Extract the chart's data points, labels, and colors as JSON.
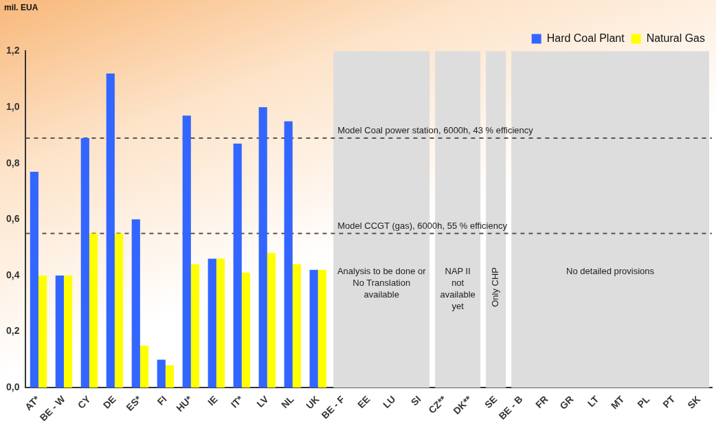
{
  "chart_data": {
    "type": "bar",
    "ylabel": "mil. EUA",
    "categories": [
      "AT*",
      "BE - W",
      "CY",
      "DE",
      "ES*",
      "FI",
      "HU*",
      "IE",
      "IT*",
      "LV",
      "NL",
      "UK",
      "BE - F",
      "EE",
      "LU",
      "SI",
      "CZ**",
      "DK**",
      "SE",
      "BE - B",
      "FR",
      "GR",
      "LT",
      "MT",
      "PL",
      "PT",
      "SK"
    ],
    "series": [
      {
        "name": "Hard Coal Plant",
        "color": "#3366ff",
        "values": [
          0.77,
          0.4,
          0.89,
          1.12,
          0.6,
          0.1,
          0.97,
          0.46,
          0.87,
          1.0,
          0.95,
          0.42,
          null,
          null,
          null,
          null,
          null,
          null,
          null,
          null,
          null,
          null,
          null,
          null,
          null,
          null,
          null
        ]
      },
      {
        "name": "Natural Gas",
        "color": "#ffff00",
        "values": [
          0.4,
          0.4,
          0.55,
          0.55,
          0.15,
          0.08,
          0.44,
          0.46,
          0.41,
          0.48,
          0.44,
          0.42,
          null,
          null,
          null,
          null,
          null,
          null,
          null,
          null,
          null,
          null,
          null,
          null,
          null,
          null,
          null
        ]
      }
    ],
    "ylim": [
      0,
      1.2
    ],
    "yticks": [
      {
        "value": 0,
        "label": "0,0"
      },
      {
        "value": 0.2,
        "label": "0,2"
      },
      {
        "value": 0.4,
        "label": "0,4"
      },
      {
        "value": 0.6,
        "label": "0,6"
      },
      {
        "value": 0.8,
        "label": "0,8"
      },
      {
        "value": 1.0,
        "label": "1,0"
      },
      {
        "value": 1.2,
        "label": "1,2"
      }
    ],
    "ref_lines": [
      {
        "axis": "y",
        "value": 0.89,
        "label": "Model Coal power station, 6000h, 43 % efficiency",
        "color": "#555555",
        "line_style": "dashed"
      },
      {
        "axis": "y",
        "value": 0.55,
        "label": "Model CCGT (gas), 6000h, 55 % efficiency",
        "color": "#555555",
        "line_style": "dashed"
      }
    ],
    "bands": [
      {
        "axis": "x",
        "from": "BE - F",
        "to": "SI",
        "label": "Analysis to be done or No Translation available",
        "color": "#dddddd"
      },
      {
        "axis": "x",
        "from": "CZ**",
        "to": "DK**",
        "label": "NAP II not available yet",
        "color": "#dddddd"
      },
      {
        "axis": "x",
        "from": "SE",
        "to": "SE",
        "label": "Only CHP",
        "color": "#dddddd"
      },
      {
        "axis": "x",
        "from": "BE - B",
        "to": "SK",
        "label": "No detailed provisions",
        "color": "#dddddd"
      }
    ],
    "grid": false,
    "legend": "top right"
  }
}
